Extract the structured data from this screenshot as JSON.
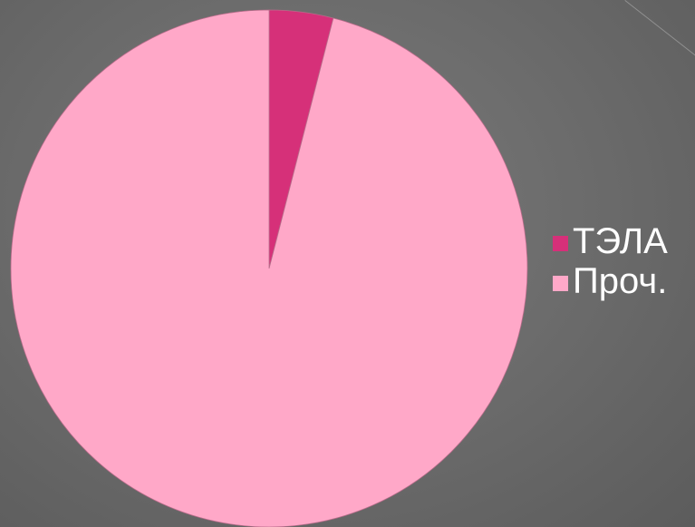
{
  "chart_data": {
    "type": "pie",
    "title": "",
    "legend_position": "right",
    "slices": [
      {
        "label": "ТЭЛА",
        "value": 4,
        "color": "#d63079"
      },
      {
        "label": "Проч.",
        "value": 96,
        "color": "#ffa8c8"
      }
    ]
  }
}
